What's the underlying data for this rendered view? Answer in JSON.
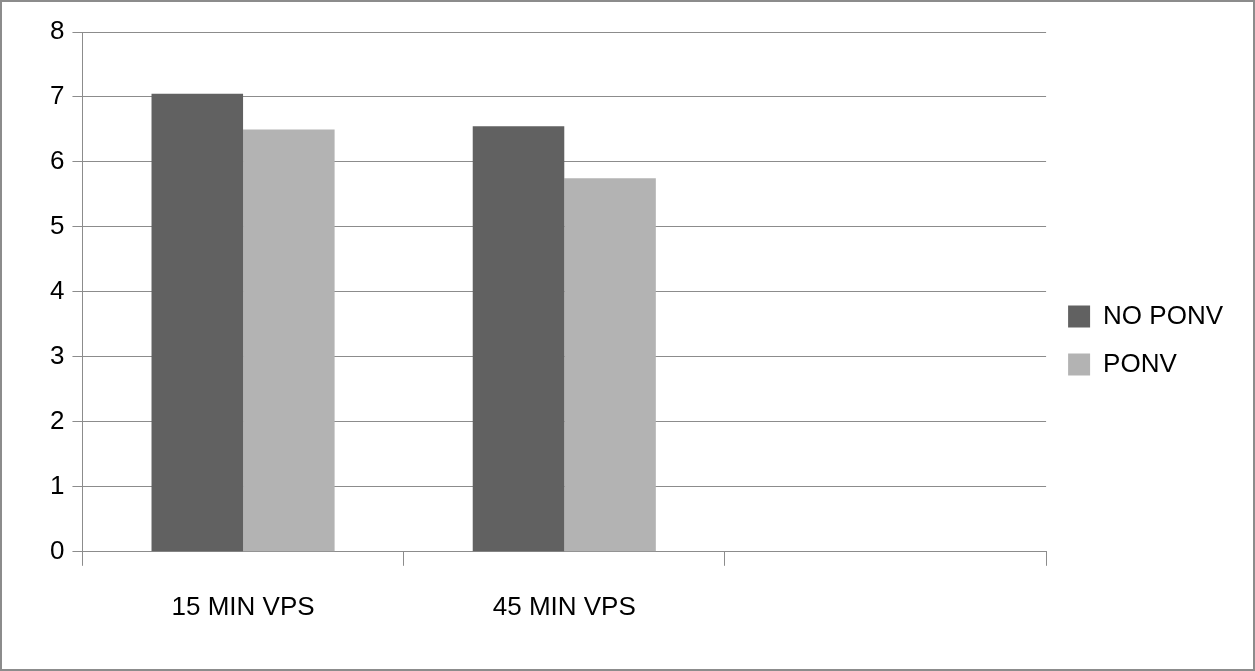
{
  "chart_data": {
    "type": "bar",
    "categories": [
      "15 MIN VPS",
      "45 MIN VPS",
      null
    ],
    "series": [
      {
        "name": "NO PONV",
        "color": "#616161",
        "values": [
          7.05,
          6.55,
          null
        ]
      },
      {
        "name": "PONV",
        "color": "#b3b3b3",
        "values": [
          6.5,
          5.75,
          null
        ]
      }
    ],
    "ylim": [
      0,
      8
    ],
    "yticks": [
      0,
      1,
      2,
      3,
      4,
      5,
      6,
      7,
      8
    ],
    "grid": "y",
    "legend": "right"
  }
}
